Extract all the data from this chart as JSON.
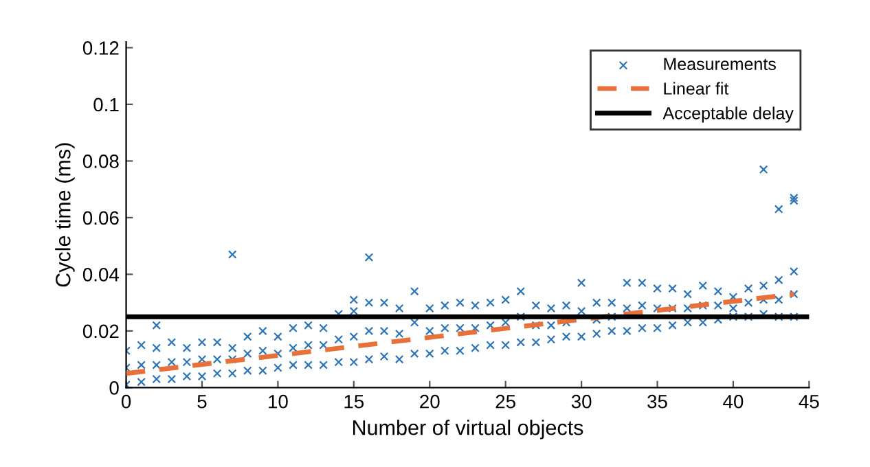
{
  "chart_data": {
    "type": "scatter",
    "xlabel": "Number of virtual objects",
    "ylabel": "Cycle time (ms)",
    "xlim": [
      0,
      45
    ],
    "xticks": [
      0,
      5,
      10,
      15,
      20,
      25,
      30,
      35,
      40,
      45
    ],
    "ylim": [
      0,
      0.122
    ],
    "yticks": [
      0,
      0.02,
      0.04,
      0.06,
      0.08,
      0.1,
      0.12
    ],
    "grid": false,
    "legend": "top right",
    "series": [
      {
        "name": "Measurements",
        "marker": "cross",
        "color": "#2e75b6",
        "x": [
          0,
          1,
          2,
          3,
          4,
          5,
          6,
          7,
          8,
          9,
          10,
          11,
          12,
          13,
          14,
          15,
          16,
          17,
          18,
          19,
          20,
          21,
          22,
          23,
          24,
          25,
          26,
          27,
          28,
          29,
          30,
          31,
          32,
          33,
          34,
          35,
          36,
          37,
          38,
          39,
          40,
          41,
          42,
          43,
          44,
          0,
          1,
          2,
          3,
          4,
          5,
          6,
          7,
          8,
          9,
          10,
          11,
          12,
          13,
          14,
          15,
          16,
          17,
          18,
          19,
          20,
          21,
          22,
          23,
          24,
          25,
          26,
          27,
          28,
          29,
          30,
          31,
          32,
          33,
          34,
          35,
          36,
          37,
          38,
          39,
          40,
          41,
          42,
          43,
          44,
          0,
          1,
          2,
          3,
          4,
          5,
          6,
          7,
          8,
          9,
          10,
          11,
          12,
          13,
          14,
          15,
          16,
          17,
          18,
          19,
          20,
          21,
          22,
          23,
          24,
          25,
          26,
          27,
          28,
          29,
          30,
          31,
          32,
          33,
          34,
          35,
          36,
          37,
          38,
          39,
          40,
          41,
          42,
          43,
          44,
          2,
          7,
          15,
          16,
          42,
          43,
          44,
          44
        ],
        "values": [
          0.001,
          0.002,
          0.003,
          0.003,
          0.004,
          0.004,
          0.005,
          0.005,
          0.006,
          0.006,
          0.007,
          0.008,
          0.008,
          0.008,
          0.009,
          0.009,
          0.01,
          0.011,
          0.01,
          0.012,
          0.012,
          0.013,
          0.013,
          0.014,
          0.015,
          0.015,
          0.016,
          0.016,
          0.017,
          0.018,
          0.018,
          0.019,
          0.02,
          0.02,
          0.021,
          0.021,
          0.022,
          0.023,
          0.023,
          0.024,
          0.025,
          0.025,
          0.026,
          0.025,
          0.025,
          0.007,
          0.008,
          0.008,
          0.009,
          0.009,
          0.01,
          0.01,
          0.01,
          0.012,
          0.013,
          0.012,
          0.014,
          0.015,
          0.015,
          0.017,
          0.018,
          0.02,
          0.02,
          0.019,
          0.023,
          0.02,
          0.021,
          0.021,
          0.021,
          0.022,
          0.023,
          0.025,
          0.022,
          0.022,
          0.023,
          0.027,
          0.024,
          0.025,
          0.028,
          0.029,
          0.028,
          0.028,
          0.028,
          0.029,
          0.029,
          0.028,
          0.03,
          0.031,
          0.031,
          0.033,
          0.013,
          0.015,
          0.014,
          0.016,
          0.014,
          0.016,
          0.016,
          0.014,
          0.018,
          0.02,
          0.018,
          0.021,
          0.022,
          0.021,
          0.026,
          0.027,
          0.03,
          0.03,
          0.028,
          0.034,
          0.028,
          0.029,
          0.03,
          0.029,
          0.03,
          0.031,
          0.034,
          0.029,
          0.028,
          0.029,
          0.037,
          0.03,
          0.03,
          0.037,
          0.037,
          0.035,
          0.035,
          0.033,
          0.036,
          0.034,
          0.032,
          0.035,
          0.036,
          0.038,
          0.041,
          0.022,
          0.047,
          0.031,
          0.046,
          0.077,
          0.063,
          0.066,
          0.067
        ]
      },
      {
        "name": "Linear fit",
        "type": "line",
        "line_style": "dashed",
        "marker": "none",
        "color": "#e8703a",
        "x": [
          0,
          44
        ],
        "values": [
          0.005,
          0.033
        ]
      }
    ],
    "ref_lines": [
      {
        "axis": "y",
        "value": 0.025,
        "label": "Acceptable delay",
        "color": "#000000",
        "line_style": "solid"
      }
    ]
  }
}
